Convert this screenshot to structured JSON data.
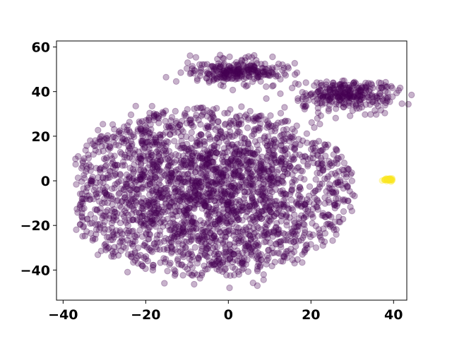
{
  "chart_data": {
    "type": "scatter",
    "title": "",
    "xlabel": "",
    "ylabel": "",
    "xlim": [
      -41.6,
      43.2
    ],
    "ylim": [
      -53.5,
      62.7
    ],
    "xticks": [
      -40,
      -20,
      0,
      20,
      40
    ],
    "yticks": [
      -40,
      -20,
      0,
      20,
      40,
      60
    ],
    "xtick_labels": [
      "−40",
      "−20",
      "0",
      "20",
      "40"
    ],
    "ytick_labels": [
      "−40",
      "−20",
      "0",
      "20",
      "40",
      "60"
    ],
    "grid": false,
    "legend": "none",
    "marker_opacity": 0.3,
    "colors": {
      "cluster_main": "#440154",
      "cluster_outlier": "#fde725",
      "axes": "#000000",
      "background": "#ffffff"
    },
    "clusters": [
      {
        "cx": -5,
        "cy": -5,
        "sx": 13,
        "sy": 16,
        "n": 2700,
        "color": "#440154",
        "shape": "disk",
        "rx": 36,
        "ry": 40
      },
      {
        "cx": 2,
        "cy": 49,
        "sx": 5.5,
        "sy": 3,
        "n": 260,
        "color": "#440154",
        "shape": "gauss"
      },
      {
        "cx": 28,
        "cy": 38.5,
        "sx": 5.5,
        "sy": 3.5,
        "n": 300,
        "color": "#440154",
        "shape": "gauss"
      },
      {
        "cx": 38.8,
        "cy": 0.5,
        "sx": 0.6,
        "sy": 0.4,
        "n": 40,
        "color": "#fde725",
        "shape": "gauss"
      }
    ]
  }
}
